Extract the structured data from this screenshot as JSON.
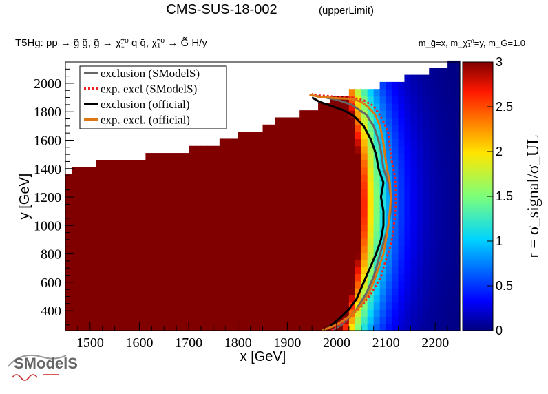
{
  "header": {
    "title": "CMS-SUS-18-002",
    "subtitle": "(upperLimit)",
    "process": "T5Hg: pp → g̃ g̃, g̃ → χ̃₁⁰ q q̄, χ̃₁⁰ → G̃ H/y",
    "mass_note": "m_g̃=x, m_χ̃₁⁰=y, m_G̃=1.0"
  },
  "logo": {
    "text": "SModelS"
  },
  "chart_data": {
    "type": "heatmap",
    "title": "CMS-SUS-18-002",
    "subtitle": "(upperLimit)",
    "xlabel": "x [GeV]",
    "ylabel": "y [GeV]",
    "zlabel": "r = σ_signal/σ_UL",
    "xlim": [
      1450,
      2250
    ],
    "ylim": [
      260,
      2150
    ],
    "zlim": [
      0,
      3
    ],
    "x_ticks": [
      1500,
      1600,
      1700,
      1800,
      1900,
      2000,
      2100,
      2200
    ],
    "y_ticks": [
      400,
      600,
      800,
      1000,
      1200,
      1400,
      1600,
      1800,
      2000
    ],
    "z_ticks": [
      0,
      0.5,
      1,
      1.5,
      2,
      2.5,
      3
    ],
    "grid": false,
    "legend_position": "top-left",
    "cell_size": [
      12.5,
      50
    ],
    "region_upper_edge": [
      [
        1450,
        1350
      ],
      [
        1460,
        1380
      ],
      [
        1470,
        1390
      ],
      [
        1480,
        1400
      ],
      [
        1500,
        1420
      ],
      [
        1520,
        1440
      ],
      [
        1550,
        1450
      ],
      [
        1600,
        1470
      ],
      [
        1630,
        1500
      ],
      [
        1650,
        1510
      ],
      [
        1700,
        1530
      ],
      [
        1720,
        1560
      ],
      [
        1750,
        1580
      ],
      [
        1790,
        1610
      ],
      [
        1800,
        1640
      ],
      [
        1830,
        1660
      ],
      [
        1850,
        1690
      ],
      [
        1870,
        1720
      ],
      [
        1900,
        1760
      ],
      [
        1920,
        1780
      ],
      [
        1950,
        1800
      ],
      [
        1960,
        1840
      ],
      [
        1985,
        1890
      ],
      [
        2040,
        1950
      ],
      [
        2080,
        1980
      ],
      [
        2120,
        2020
      ],
      [
        2170,
        2060
      ],
      [
        2210,
        2110
      ],
      [
        2240,
        2150
      ]
    ],
    "series": [
      {
        "name": "exclusion (SModelS)",
        "color": "#666666",
        "style": "solid",
        "points": [
          [
            1990,
            260
          ],
          [
            2010,
            300
          ],
          [
            2030,
            370
          ],
          [
            2040,
            410
          ],
          [
            2060,
            520
          ],
          [
            2075,
            640
          ],
          [
            2085,
            760
          ],
          [
            2095,
            880
          ],
          [
            2105,
            1000
          ],
          [
            2110,
            1100
          ],
          [
            2110,
            1200
          ],
          [
            2105,
            1300
          ],
          [
            2095,
            1400
          ],
          [
            2090,
            1520
          ],
          [
            2085,
            1600
          ],
          [
            2075,
            1700
          ],
          [
            2060,
            1780
          ],
          [
            2030,
            1850
          ],
          [
            2000,
            1885
          ],
          [
            1970,
            1905
          ],
          [
            1960,
            1910
          ]
        ]
      },
      {
        "name": "exp. excl (SModelS)",
        "color": "#ee2222",
        "style": "dotted",
        "points": [
          [
            1990,
            260
          ],
          [
            2020,
            340
          ],
          [
            2050,
            430
          ],
          [
            2070,
            520
          ],
          [
            2090,
            640
          ],
          [
            2100,
            760
          ],
          [
            2110,
            860
          ],
          [
            2115,
            960
          ],
          [
            2118,
            1060
          ],
          [
            2120,
            1150
          ],
          [
            2120,
            1250
          ],
          [
            2118,
            1350
          ],
          [
            2112,
            1450
          ],
          [
            2108,
            1550
          ],
          [
            2105,
            1650
          ],
          [
            2095,
            1730
          ],
          [
            2085,
            1790
          ],
          [
            2075,
            1840
          ],
          [
            2055,
            1880
          ],
          [
            2030,
            1900
          ],
          [
            2000,
            1905
          ],
          [
            1965,
            1915
          ],
          [
            1950,
            1925
          ]
        ]
      },
      {
        "name": "exclusion (official)",
        "color": "#000000",
        "style": "solid",
        "points": [
          [
            1975,
            260
          ],
          [
            1990,
            300
          ],
          [
            2010,
            360
          ],
          [
            2025,
            410
          ],
          [
            2040,
            480
          ],
          [
            2050,
            560
          ],
          [
            2060,
            640
          ],
          [
            2070,
            720
          ],
          [
            2080,
            800
          ],
          [
            2090,
            900
          ],
          [
            2095,
            1000
          ],
          [
            2095,
            1100
          ],
          [
            2090,
            1200
          ],
          [
            2095,
            1300
          ],
          [
            2085,
            1400
          ],
          [
            2080,
            1500
          ],
          [
            2070,
            1600
          ],
          [
            2055,
            1700
          ],
          [
            2035,
            1770
          ],
          [
            2015,
            1810
          ],
          [
            1990,
            1840
          ],
          [
            1965,
            1870
          ],
          [
            1950,
            1900
          ]
        ]
      },
      {
        "name": "exp. excl. (official)",
        "color": "#dd7711",
        "style": "solid",
        "points": [
          [
            1970,
            260
          ],
          [
            2000,
            300
          ],
          [
            2030,
            370
          ],
          [
            2050,
            440
          ],
          [
            2065,
            520
          ],
          [
            2075,
            600
          ],
          [
            2085,
            700
          ],
          [
            2095,
            800
          ],
          [
            2100,
            900
          ],
          [
            2105,
            1000
          ],
          [
            2108,
            1100
          ],
          [
            2110,
            1200
          ],
          [
            2108,
            1300
          ],
          [
            2102,
            1400
          ],
          [
            2098,
            1500
          ],
          [
            2094,
            1600
          ],
          [
            2088,
            1700
          ],
          [
            2078,
            1780
          ],
          [
            2065,
            1830
          ],
          [
            2050,
            1870
          ],
          [
            2030,
            1890
          ],
          [
            2000,
            1895
          ],
          [
            1965,
            1905
          ],
          [
            1945,
            1920
          ]
        ]
      }
    ]
  }
}
